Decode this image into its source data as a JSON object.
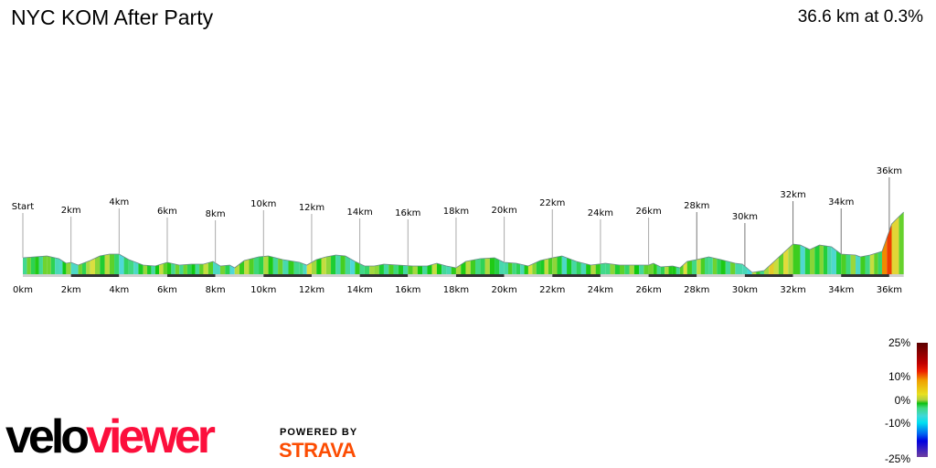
{
  "header": {
    "title": "NYC KOM After Party",
    "summary": "36.6 km at 0.3%"
  },
  "chart_data": {
    "type": "area",
    "title": "NYC KOM After Party",
    "xlabel": "",
    "ylabel": "",
    "x_unit": "km",
    "xlim": [
      0,
      36.6
    ],
    "x_tick_labels": [
      "0km",
      "2km",
      "4km",
      "6km",
      "8km",
      "10km",
      "12km",
      "14km",
      "16km",
      "18km",
      "20km",
      "22km",
      "24km",
      "26km",
      "28km",
      "30km",
      "32km",
      "34km",
      "36km"
    ],
    "marker_labels": [
      "Start",
      "2km",
      "4km",
      "6km",
      "8km",
      "10km",
      "12km",
      "14km",
      "16km",
      "18km",
      "20km",
      "22km",
      "24km",
      "26km",
      "28km",
      "30km",
      "32km",
      "34km",
      "36km"
    ],
    "distance_km": [
      0,
      0.5,
      1,
      1.5,
      1.8,
      2,
      2.3,
      2.8,
      3.2,
      3.6,
      4,
      4.4,
      5,
      5.5,
      6,
      6.5,
      7,
      7.5,
      7.9,
      8.2,
      8.6,
      8.8,
      9.2,
      9.8,
      10.2,
      10.8,
      11.5,
      11.8,
      12.2,
      12.6,
      13,
      13.4,
      13.8,
      14.2,
      14.6,
      15,
      15.6,
      16.2,
      16.8,
      17.2,
      17.6,
      18,
      18.4,
      19,
      19.6,
      20,
      20.5,
      21,
      21.5,
      22,
      22.4,
      23,
      23.6,
      24.2,
      24.8,
      25.6,
      26,
      26.2,
      26.5,
      27,
      27.3,
      27.6,
      28,
      28.5,
      29,
      29.6,
      29.9,
      30.3,
      30.8,
      32,
      32.3,
      32.7,
      33.1,
      33.6,
      34,
      34.6,
      34.8,
      35.2,
      35.7,
      36.1,
      36.4,
      36.6
    ],
    "relative_elevation": [
      18,
      19,
      20,
      17,
      12,
      13,
      10,
      15,
      20,
      22,
      22,
      16,
      10,
      9,
      13,
      10,
      11,
      11,
      14,
      9,
      10,
      7,
      15,
      19,
      20,
      16,
      13,
      10,
      16,
      19,
      21,
      20,
      14,
      9,
      9,
      11,
      10,
      9,
      9,
      12,
      9,
      7,
      14,
      17,
      18,
      13,
      12,
      9,
      15,
      18,
      20,
      14,
      10,
      12,
      10,
      10,
      10,
      12,
      8,
      9,
      7,
      14,
      16,
      19,
      16,
      12,
      11,
      2,
      4,
      33,
      32,
      27,
      32,
      30,
      22,
      21,
      19,
      21,
      25,
      55,
      63,
      68
    ],
    "color_by": "gradient",
    "legend": {
      "placement": "bottom-right",
      "labels": [
        "25%",
        "10%",
        "0%",
        "-10%",
        "-25%"
      ],
      "colors": [
        "#5a0000",
        "#f0a000",
        "#10c010",
        "#00e0f0",
        "#7040a0"
      ]
    }
  },
  "branding": {
    "logo_part1": "velo",
    "logo_part2": "viewer",
    "powered_by": "POWERED BY",
    "strava": "STRAVA"
  }
}
